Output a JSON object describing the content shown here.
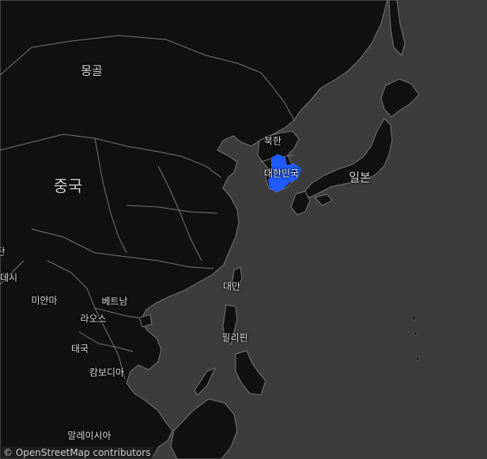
{
  "map": {
    "theme": "dark",
    "colors": {
      "ocean": "#3c3c3c",
      "land": "#111111",
      "borders": "#7a7a7a",
      "highlight": "#1f5bff"
    },
    "labels": {
      "mongolia": "몽골",
      "china": "중국",
      "north_korea": "북한",
      "south_korea": "대한민국",
      "japan": "일본",
      "taiwan": "대만",
      "philippines": "필리핀",
      "myanmar": "미얀마",
      "vietnam": "베트남",
      "laos": "라오스",
      "thailand": "태국",
      "cambodia": "캄보디아",
      "malaysia": "말레이시아",
      "bangladesh": "방글라데시",
      "bhutan": "부탄"
    },
    "highlighted_region": "대한민국",
    "attribution": "© OpenStreetMap contributors"
  }
}
